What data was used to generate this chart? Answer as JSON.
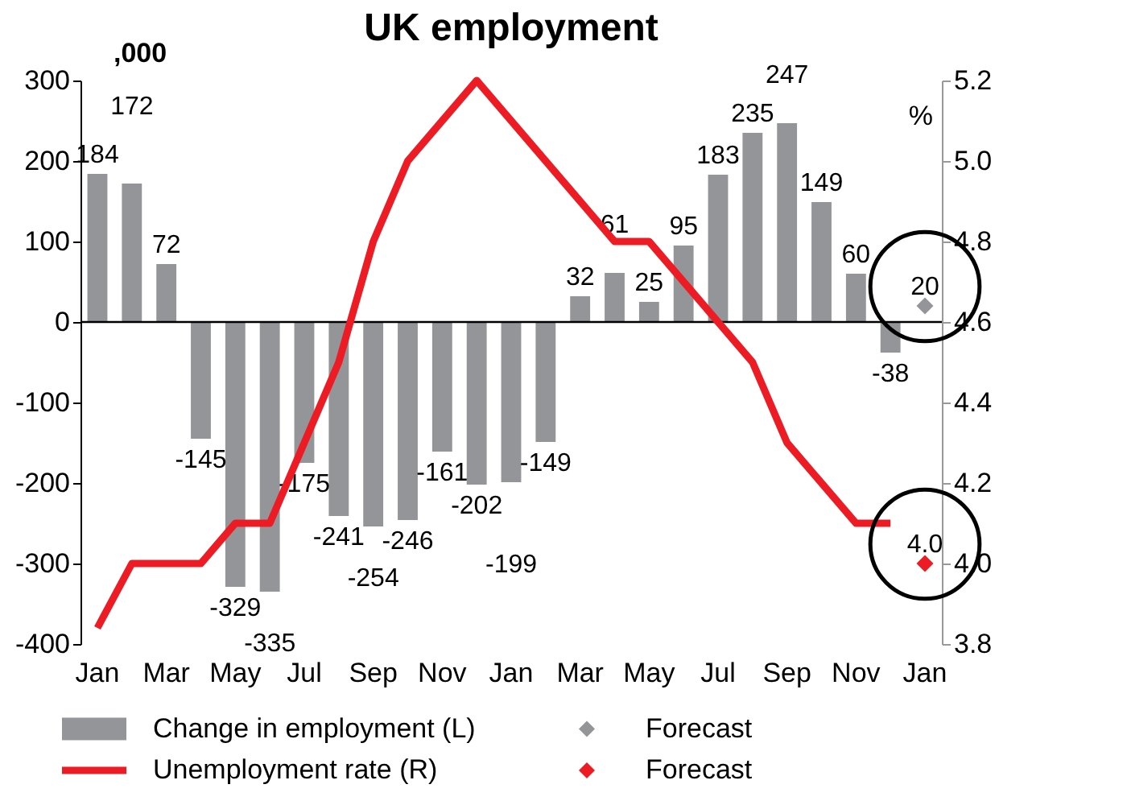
{
  "chart_data": {
    "type": "bar",
    "title": "UK employment",
    "ylabel": ",000",
    "y2label": "%",
    "categories": [
      "Jan",
      null,
      "Mar",
      null,
      "May",
      null,
      "Jul",
      null,
      "Sep",
      null,
      "Nov",
      null,
      "Jan",
      null,
      "Mar",
      null,
      "May",
      null,
      "Jul",
      null,
      "Sep",
      null,
      "Nov",
      null,
      "Jan"
    ],
    "series": [
      {
        "name": "Change in employment (L)",
        "color": "#939598",
        "values": [
          184,
          172,
          72,
          -145,
          -329,
          -335,
          -175,
          -241,
          -254,
          -246,
          -161,
          -202,
          -199,
          -149,
          32,
          61,
          25,
          95,
          183,
          235,
          247,
          149,
          60,
          -38,
          null
        ],
        "value_labels": [
          "184",
          "172",
          "72",
          "-145",
          "-329",
          "-335",
          "-175",
          "-241",
          "-254",
          "-246",
          "-161",
          "-202",
          "-199",
          "-149",
          "32",
          "61",
          "25",
          "95",
          "183",
          "235",
          "247",
          "149",
          "60",
          "-38",
          null
        ]
      },
      {
        "name": "Forecast",
        "type": "scatter",
        "marker": "diamond",
        "color": "#939598",
        "values": [
          null,
          null,
          null,
          null,
          null,
          null,
          null,
          null,
          null,
          null,
          null,
          null,
          null,
          null,
          null,
          null,
          null,
          null,
          null,
          null,
          null,
          null,
          null,
          null,
          20
        ],
        "value_labels": [
          null,
          null,
          null,
          null,
          null,
          null,
          null,
          null,
          null,
          null,
          null,
          null,
          null,
          null,
          null,
          null,
          null,
          null,
          null,
          null,
          null,
          null,
          null,
          null,
          "20"
        ]
      },
      {
        "name": "Unemployment rate (R)",
        "type": "line",
        "axis": "y2",
        "color": "#ed1c24",
        "values": [
          3.84,
          4.0,
          4.0,
          4.0,
          4.1,
          4.1,
          4.3,
          4.5,
          4.8,
          5.0,
          5.1,
          5.2,
          5.1,
          5.0,
          4.9,
          4.8,
          4.8,
          4.7,
          4.6,
          4.5,
          4.3,
          4.2,
          4.1,
          4.1,
          null
        ]
      },
      {
        "name": "Forecast",
        "type": "scatter",
        "marker": "diamond",
        "axis": "y2",
        "color": "#ed1c24",
        "values": [
          null,
          null,
          null,
          null,
          null,
          null,
          null,
          null,
          null,
          null,
          null,
          null,
          null,
          null,
          null,
          null,
          null,
          null,
          null,
          null,
          null,
          null,
          null,
          null,
          4.0
        ],
        "value_labels": [
          null,
          null,
          null,
          null,
          null,
          null,
          null,
          null,
          null,
          null,
          null,
          null,
          null,
          null,
          null,
          null,
          null,
          null,
          null,
          null,
          null,
          null,
          null,
          null,
          "4.0"
        ]
      }
    ],
    "ylim": [
      -400,
      300
    ],
    "yticks": [
      -400,
      -300,
      -200,
      -100,
      0,
      100,
      200,
      300
    ],
    "y2lim": [
      3.8,
      5.2
    ],
    "y2ticks": [
      3.8,
      {
        "value": 4,
        "label": "4.0"
      },
      4.2,
      4.4,
      4.6,
      4.8,
      {
        "value": 5,
        "label": "5.0"
      },
      5.2
    ],
    "ref_lines": [
      {
        "axis": "y",
        "value": 0,
        "color": "#000000"
      }
    ],
    "legend": "bottom"
  }
}
